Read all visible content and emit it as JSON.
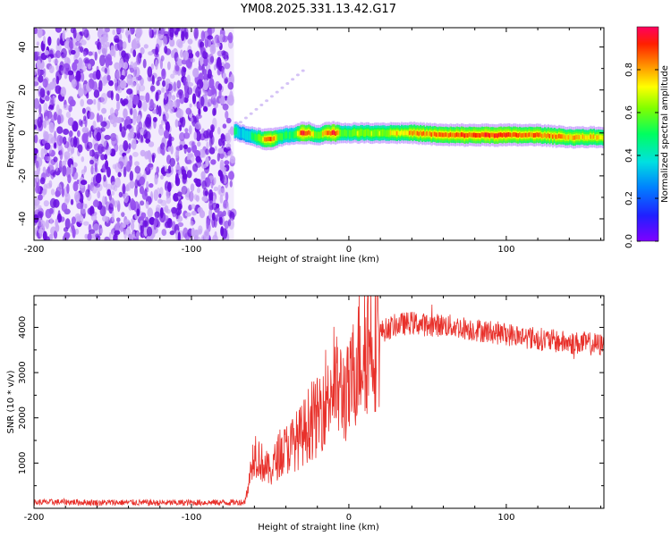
{
  "title": "YM08.2025.331.13.42.G17",
  "chart_data": [
    {
      "type": "heatmap",
      "name": "spectrogram",
      "xlabel": "Height of straight line (km)",
      "ylabel": "Frequency (Hz)",
      "xlim": [
        -200,
        162
      ],
      "ylim": [
        -50,
        49
      ],
      "xticks": [
        -200,
        -100,
        0,
        100
      ],
      "yticks": [
        -40,
        -20,
        0,
        20,
        40
      ],
      "noise_region_x": [
        -200,
        -73
      ],
      "signal_track": {
        "x": [
          -73,
          -70,
          -65,
          -60,
          -55,
          -50,
          -45,
          -40,
          -35,
          -30,
          -25,
          -20,
          -15,
          -10,
          -5,
          0,
          10,
          20,
          30,
          40,
          60,
          80,
          100,
          120,
          140,
          162
        ],
        "freq": [
          1,
          0,
          -1,
          -2,
          -3,
          -3,
          -2,
          -1,
          -1,
          0,
          0,
          -1,
          0,
          0,
          0,
          0,
          0,
          0,
          0,
          0,
          -1,
          -1,
          -1,
          -1,
          -2,
          -2
        ],
        "amplitude": [
          0.5,
          0.35,
          0.4,
          0.55,
          0.75,
          0.9,
          0.6,
          0.5,
          0.55,
          0.95,
          0.8,
          0.6,
          0.85,
          0.95,
          0.6,
          0.6,
          0.7,
          0.65,
          0.75,
          0.8,
          0.85,
          0.9,
          0.9,
          0.85,
          0.8,
          0.75
        ]
      },
      "colorbar": {
        "label": "Normalized spectral amplitude",
        "range": [
          0.0,
          1.0
        ],
        "ticks": [
          "0.0",
          "0.2",
          "0.4",
          "0.6",
          "0.8"
        ]
      }
    },
    {
      "type": "line",
      "name": "snr",
      "xlabel": "Height of straight line (km)",
      "ylabel": "SNR (10 * v/v)",
      "xlim": [
        -200,
        162
      ],
      "ylim": [
        0,
        4700
      ],
      "xticks": [
        -200,
        -100,
        0,
        100
      ],
      "yticks": [
        1000,
        2000,
        3000,
        4000
      ],
      "color": "#e8302a",
      "series": [
        {
          "name": "SNR",
          "x": [
            -200,
            -180,
            -160,
            -140,
            -120,
            -100,
            -80,
            -66,
            -63,
            -60,
            -55,
            -50,
            -45,
            -40,
            -35,
            -30,
            -25,
            -20,
            -15,
            -10,
            -5,
            0,
            5,
            10,
            15,
            20,
            30,
            40,
            50,
            60,
            70,
            80,
            90,
            100,
            110,
            120,
            130,
            140,
            150,
            162
          ],
          "y": [
            130,
            140,
            125,
            130,
            120,
            125,
            130,
            135,
            700,
            1300,
            1000,
            800,
            1150,
            1300,
            1450,
            1600,
            1900,
            2000,
            2500,
            2700,
            2600,
            2500,
            3300,
            3600,
            3800,
            3900,
            4050,
            4100,
            4050,
            4050,
            4000,
            3950,
            3900,
            3850,
            3800,
            3750,
            3700,
            3650,
            3650,
            3600
          ]
        }
      ]
    }
  ]
}
